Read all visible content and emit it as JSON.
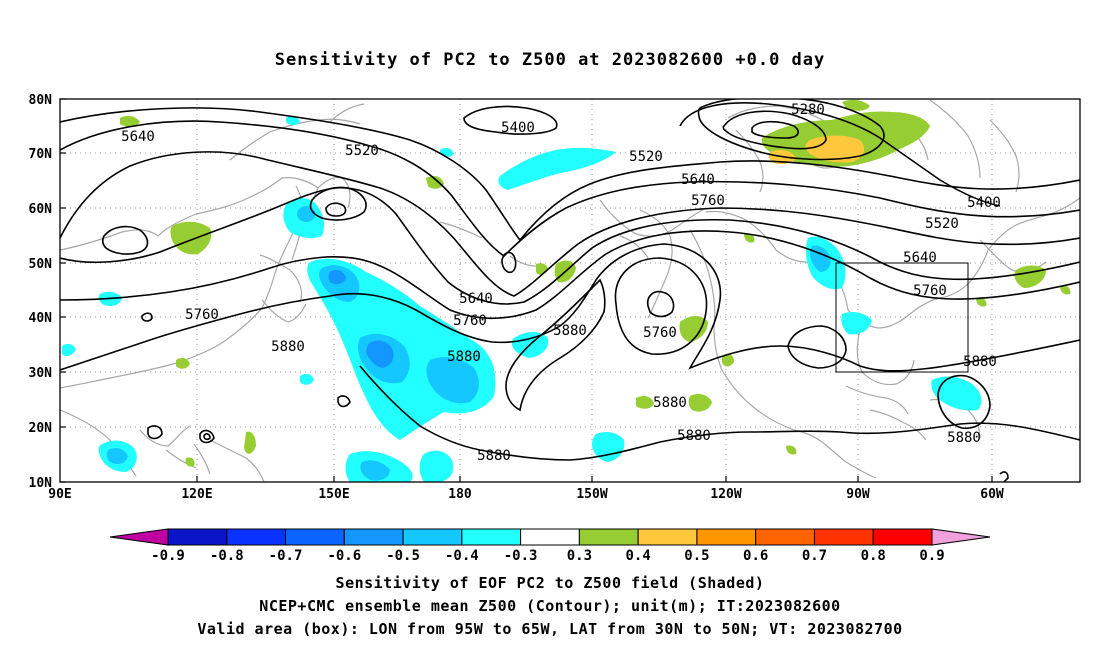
{
  "title": "Sensitivity of PC2 to Z500 at 2023082600 +0.0 day",
  "map": {
    "lon_labels": [
      "90E",
      "120E",
      "150E",
      "180",
      "150W",
      "120W",
      "90W",
      "60W"
    ],
    "lat_labels": [
      "80N",
      "70N",
      "60N",
      "50N",
      "40N",
      "30N",
      "20N",
      "10N"
    ],
    "lon_range": [
      "90E",
      "45W"
    ],
    "lat_range": [
      "10N",
      "80N"
    ],
    "grid": "dotted",
    "contour_labels": [
      {
        "id": "c5640a",
        "text": "5640"
      },
      {
        "id": "c5520a",
        "text": "5520"
      },
      {
        "id": "c5400a",
        "text": "5400"
      },
      {
        "id": "c5280a",
        "text": "5280"
      },
      {
        "id": "c5520b",
        "text": "5520"
      },
      {
        "id": "c5640b",
        "text": "5640"
      },
      {
        "id": "c5760a",
        "text": "5760"
      },
      {
        "id": "c5400b",
        "text": "5400"
      },
      {
        "id": "c5520c",
        "text": "5520"
      },
      {
        "id": "c5640c",
        "text": "5640"
      },
      {
        "id": "c5760b",
        "text": "5760"
      },
      {
        "id": "c5760c",
        "text": "5760"
      },
      {
        "id": "c5880a",
        "text": "5880"
      },
      {
        "id": "c5640d",
        "text": "5640"
      },
      {
        "id": "c5760d",
        "text": "5760"
      },
      {
        "id": "c5880b",
        "text": "5880"
      },
      {
        "id": "c5880c",
        "text": "5880"
      },
      {
        "id": "c5760e",
        "text": "5760"
      },
      {
        "id": "c5880d",
        "text": "5880"
      },
      {
        "id": "c5880e",
        "text": "5880"
      },
      {
        "id": "c5880f",
        "text": "5880"
      },
      {
        "id": "c5880g",
        "text": "5880"
      },
      {
        "id": "c5880h",
        "text": "5880"
      }
    ],
    "valid_box": {
      "lon_from": "95W",
      "lon_to": "65W",
      "lat_from": "30N",
      "lat_to": "50N"
    }
  },
  "colorbar": {
    "labels": [
      "-0.9",
      "-0.8",
      "-0.7",
      "-0.6",
      "-0.5",
      "-0.4",
      "-0.3",
      "0.3",
      "0.4",
      "0.5",
      "0.6",
      "0.7",
      "0.8",
      "0.9"
    ],
    "colors": [
      "#c000a0",
      "#0a14c8",
      "#0a32ff",
      "#0a64ff",
      "#1496ff",
      "#14c8ff",
      "#22ffff",
      "#ffffff",
      "#96cd32",
      "#ffc83c",
      "#ff9600",
      "#ff6400",
      "#ff3200",
      "#ff0000",
      "#f0a0dc"
    ]
  },
  "captions": {
    "line1": "Sensitivity of EOF PC2 to Z500 field (Shaded)",
    "line2": "NCEP+CMC ensemble mean Z500 (Contour); unit(m); IT:2023082600",
    "line3": "Valid area (box): LON from 95W to 65W, LAT from 30N to 50N; VT: 2023082700"
  }
}
